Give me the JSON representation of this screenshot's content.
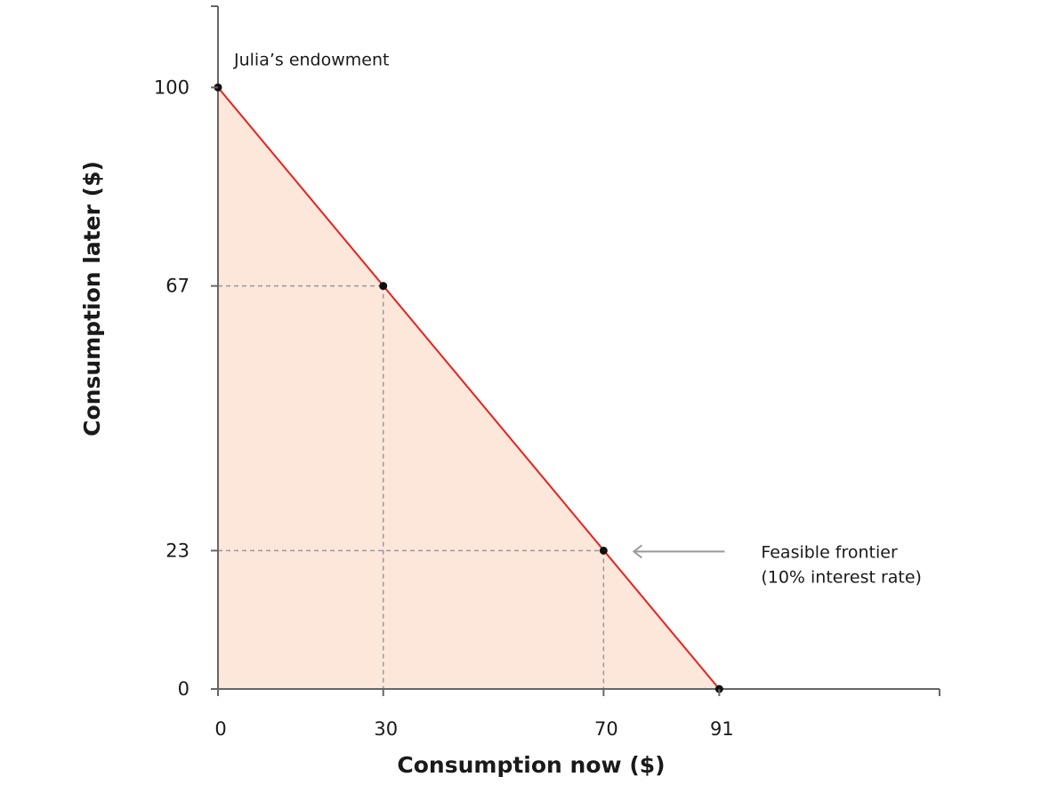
{
  "chart_data": {
    "type": "area",
    "title": "",
    "xlabel": "Consumption now ($)",
    "ylabel": "Consumption later ($)",
    "xlim": [
      0,
      131
    ],
    "ylim": [
      0,
      113.5
    ],
    "grid": false,
    "x_ticks": [
      {
        "value": 0,
        "label": "0"
      },
      {
        "value": 30,
        "label": "30"
      },
      {
        "value": 70,
        "label": "70"
      },
      {
        "value": 91,
        "label": "91"
      }
    ],
    "y_ticks": [
      {
        "value": 0,
        "label": "0"
      },
      {
        "value": 23,
        "label": "23"
      },
      {
        "value": 67,
        "label": "67"
      },
      {
        "value": 100,
        "label": "100"
      }
    ],
    "frontier": {
      "points": [
        {
          "x": 0,
          "y": 100
        },
        {
          "x": 91,
          "y": 0
        }
      ],
      "line_color": "#e8211d",
      "fill_color": "#fde6da"
    },
    "points": [
      {
        "x": 0,
        "y": 100
      },
      {
        "x": 30,
        "y": 67
      },
      {
        "x": 70,
        "y": 23
      },
      {
        "x": 91,
        "y": 0
      }
    ],
    "guides": [
      {
        "x": 30,
        "y": 67
      },
      {
        "x": 70,
        "y": 23
      }
    ],
    "annotations": [
      {
        "id": "endowment",
        "lines": [
          "Julia’s endowment"
        ],
        "anchor_x": 0,
        "anchor_y": 100
      },
      {
        "id": "frontier",
        "lines": [
          "Feasible frontier",
          "(10% interest rate)"
        ],
        "anchor_x": 70,
        "anchor_y": 23,
        "arrow": true
      }
    ],
    "colors": {
      "axis": "#666666",
      "guide": "#999999",
      "point": "#111111",
      "arrow": "#999999"
    }
  }
}
